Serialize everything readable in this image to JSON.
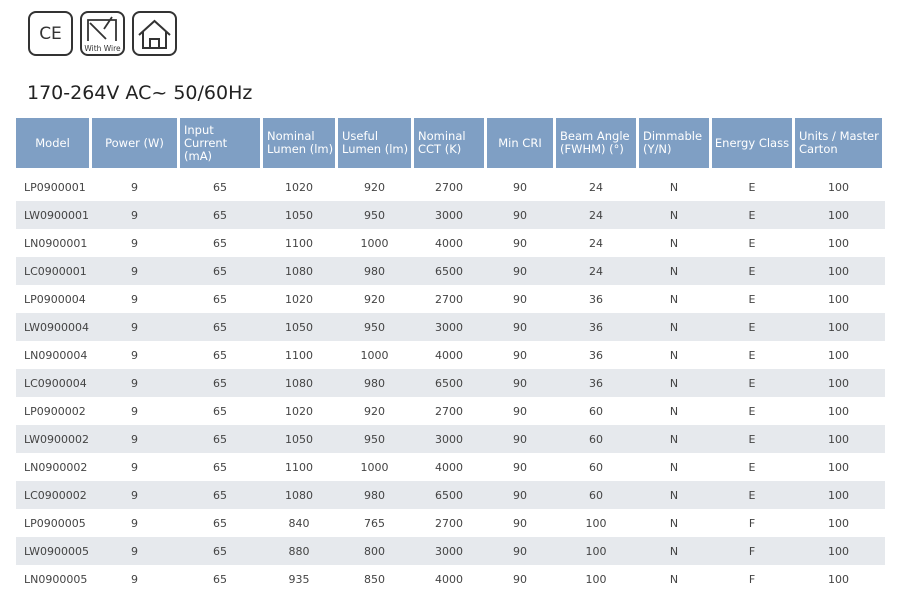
{
  "icons": {
    "ce": "CE",
    "wire": "With Wire"
  },
  "title": "170-264V AC~ 50/60Hz",
  "table": {
    "header": [
      [
        "Model"
      ],
      [
        "Power (W)"
      ],
      [
        "Input Current",
        "(mA)"
      ],
      [
        "Nominal",
        "Lumen (lm)"
      ],
      [
        "Useful",
        "Lumen (lm)"
      ],
      [
        "Nominal",
        "CCT (K)"
      ],
      [
        "Min CRI"
      ],
      [
        "Beam Angle",
        "(FWHM) (°)"
      ],
      [
        "Dimmable",
        "(Y/N)"
      ],
      [
        "Energy Class"
      ],
      [
        "Units / Master",
        "Carton"
      ]
    ],
    "rows": [
      [
        "LP0900001",
        9,
        65,
        1020,
        920,
        2700,
        90,
        24,
        "N",
        "E",
        100
      ],
      [
        "LW0900001",
        9,
        65,
        1050,
        950,
        3000,
        90,
        24,
        "N",
        "E",
        100
      ],
      [
        "LN0900001",
        9,
        65,
        1100,
        1000,
        4000,
        90,
        24,
        "N",
        "E",
        100
      ],
      [
        "LC0900001",
        9,
        65,
        1080,
        980,
        6500,
        90,
        24,
        "N",
        "E",
        100
      ],
      [
        "LP0900004",
        9,
        65,
        1020,
        920,
        2700,
        90,
        36,
        "N",
        "E",
        100
      ],
      [
        "LW0900004",
        9,
        65,
        1050,
        950,
        3000,
        90,
        36,
        "N",
        "E",
        100
      ],
      [
        "LN0900004",
        9,
        65,
        1100,
        1000,
        4000,
        90,
        36,
        "N",
        "E",
        100
      ],
      [
        "LC0900004",
        9,
        65,
        1080,
        980,
        6500,
        90,
        36,
        "N",
        "E",
        100
      ],
      [
        "LP0900002",
        9,
        65,
        1020,
        920,
        2700,
        90,
        60,
        "N",
        "E",
        100
      ],
      [
        "LW0900002",
        9,
        65,
        1050,
        950,
        3000,
        90,
        60,
        "N",
        "E",
        100
      ],
      [
        "LN0900002",
        9,
        65,
        1100,
        1000,
        4000,
        90,
        60,
        "N",
        "E",
        100
      ],
      [
        "LC0900002",
        9,
        65,
        1080,
        980,
        6500,
        90,
        60,
        "N",
        "E",
        100
      ],
      [
        "LP0900005",
        9,
        65,
        840,
        765,
        2700,
        90,
        100,
        "N",
        "F",
        100
      ],
      [
        "LW0900005",
        9,
        65,
        880,
        800,
        3000,
        90,
        100,
        "N",
        "F",
        100
      ],
      [
        "LN0900005",
        9,
        65,
        935,
        850,
        4000,
        90,
        100,
        "N",
        "F",
        100
      ]
    ]
  }
}
